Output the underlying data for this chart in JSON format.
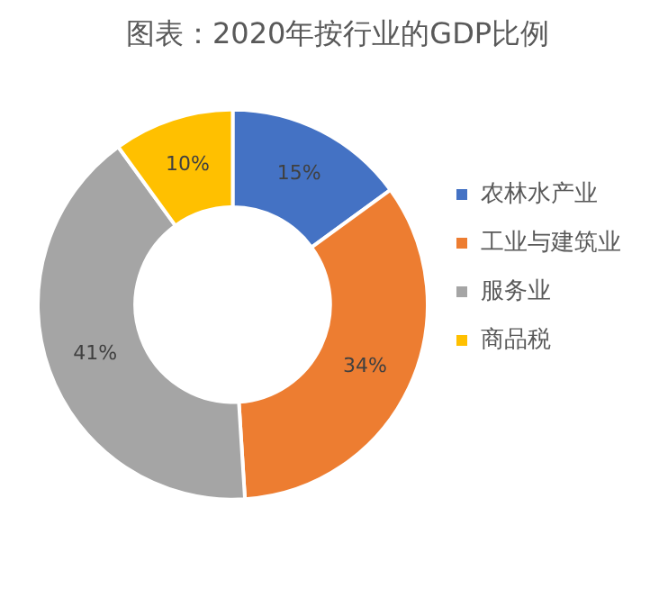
{
  "chart_data": {
    "type": "donut",
    "title": "图表：2020年按行业的GDP比例",
    "categories": [
      "农林水产业",
      "工业与建筑业",
      "服务业",
      "商品税"
    ],
    "values": [
      15,
      34,
      41,
      10
    ],
    "value_labels": [
      "15%",
      "34%",
      "41%",
      "10%"
    ],
    "colors": [
      "#4472c4",
      "#ed7d31",
      "#a5a5a5",
      "#ffc000"
    ],
    "legend": "right"
  }
}
